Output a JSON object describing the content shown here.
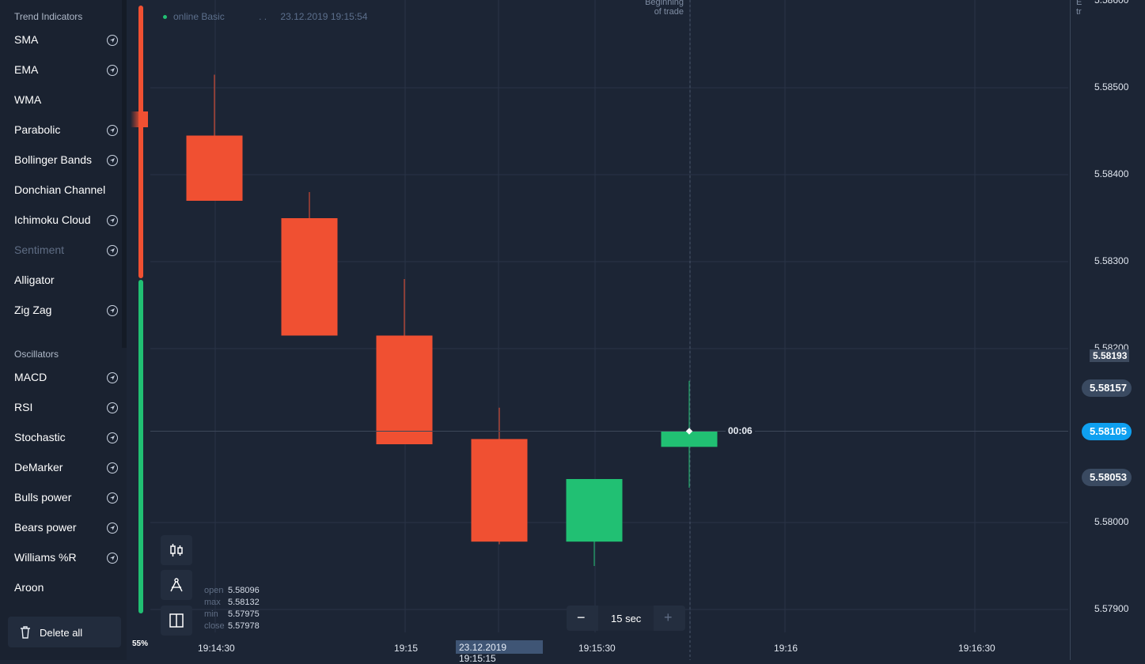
{
  "sidebar": {
    "trend_title": "Trend Indicators",
    "trend_items": [
      {
        "label": "SMA",
        "has_arrow": true,
        "dim": false
      },
      {
        "label": "EMA",
        "has_arrow": true,
        "dim": false
      },
      {
        "label": "WMA",
        "has_arrow": false,
        "dim": false
      },
      {
        "label": "Parabolic",
        "has_arrow": true,
        "dim": false
      },
      {
        "label": "Bollinger Bands",
        "has_arrow": true,
        "dim": false
      },
      {
        "label": "Donchian Channel",
        "has_arrow": false,
        "dim": false
      },
      {
        "label": "Ichimoku Cloud",
        "has_arrow": true,
        "dim": false
      },
      {
        "label": "Sentiment",
        "has_arrow": true,
        "dim": true
      },
      {
        "label": "Alligator",
        "has_arrow": false,
        "dim": false
      },
      {
        "label": "Zig Zag",
        "has_arrow": true,
        "dim": false
      }
    ],
    "osc_title": "Oscillators",
    "osc_items": [
      {
        "label": "MACD",
        "has_arrow": true,
        "dim": false
      },
      {
        "label": "RSI",
        "has_arrow": true,
        "dim": false
      },
      {
        "label": "Stochastic",
        "has_arrow": true,
        "dim": false
      },
      {
        "label": "DeMarker",
        "has_arrow": true,
        "dim": false
      },
      {
        "label": "Bulls power",
        "has_arrow": true,
        "dim": false
      },
      {
        "label": "Bears power",
        "has_arrow": true,
        "dim": false
      },
      {
        "label": "Williams %R",
        "has_arrow": true,
        "dim": false
      },
      {
        "label": "Aroon",
        "has_arrow": false,
        "dim": false
      }
    ],
    "delete_all": "Delete all"
  },
  "sentiment": {
    "percent_label": "55%",
    "sell_fraction": 0.45
  },
  "header": {
    "account": "online Basic",
    "separator": ". .",
    "datetime": "23.12.2019 19:15:54"
  },
  "trade_markers": {
    "begin_line1": "Beginning",
    "begin_line2": "of trade",
    "end_line1": "E",
    "end_line2": "tr"
  },
  "countdown": "00:06",
  "price_axis": {
    "ticks": [
      "5.58600",
      "5.58500",
      "5.58400",
      "5.58300",
      "5.58200",
      "5.58000",
      "5.57900"
    ],
    "open_tag": "5.58193",
    "high_tag": "5.58157",
    "current": "5.58105",
    "low_tag": "5.58053"
  },
  "time_axis": {
    "ticks": [
      "19:14:30",
      "19:15",
      "19:15:30",
      "19:16",
      "19:16:30"
    ],
    "highlight": "23.12.2019 19:15:15"
  },
  "ohlc": {
    "open_label": "open",
    "open": "5.58096",
    "max_label": "max",
    "max": "5.58132",
    "min_label": "min",
    "min": "5.57975",
    "close_label": "close",
    "close": "5.57978"
  },
  "timeframe": {
    "value": "15 sec",
    "minus": "−",
    "plus": "+"
  },
  "colors": {
    "up": "#21c073",
    "down": "#f05032",
    "accent": "#0fa0f0",
    "background": "#1c2535"
  },
  "chart_data": {
    "type": "candlestick",
    "candles": [
      {
        "time": "19:14:30",
        "open": 5.58445,
        "high": 5.58515,
        "low": 5.5837,
        "close": 5.5837
      },
      {
        "time": "19:14:45",
        "open": 5.5835,
        "high": 5.5838,
        "low": 5.58215,
        "close": 5.58215
      },
      {
        "time": "19:15",
        "open": 5.58215,
        "high": 5.5828,
        "low": 5.5809,
        "close": 5.5809
      },
      {
        "time": "19:15:15",
        "open": 5.58096,
        "high": 5.58132,
        "low": 5.57975,
        "close": 5.57978
      },
      {
        "time": "19:15:30",
        "open": 5.57978,
        "high": 5.5805,
        "low": 5.5795,
        "close": 5.5805
      },
      {
        "time": "19:15:45",
        "open": 5.58087,
        "high": 5.58163,
        "low": 5.5804,
        "close": 5.58105
      }
    ],
    "ylim": [
      5.579,
      5.586
    ]
  }
}
